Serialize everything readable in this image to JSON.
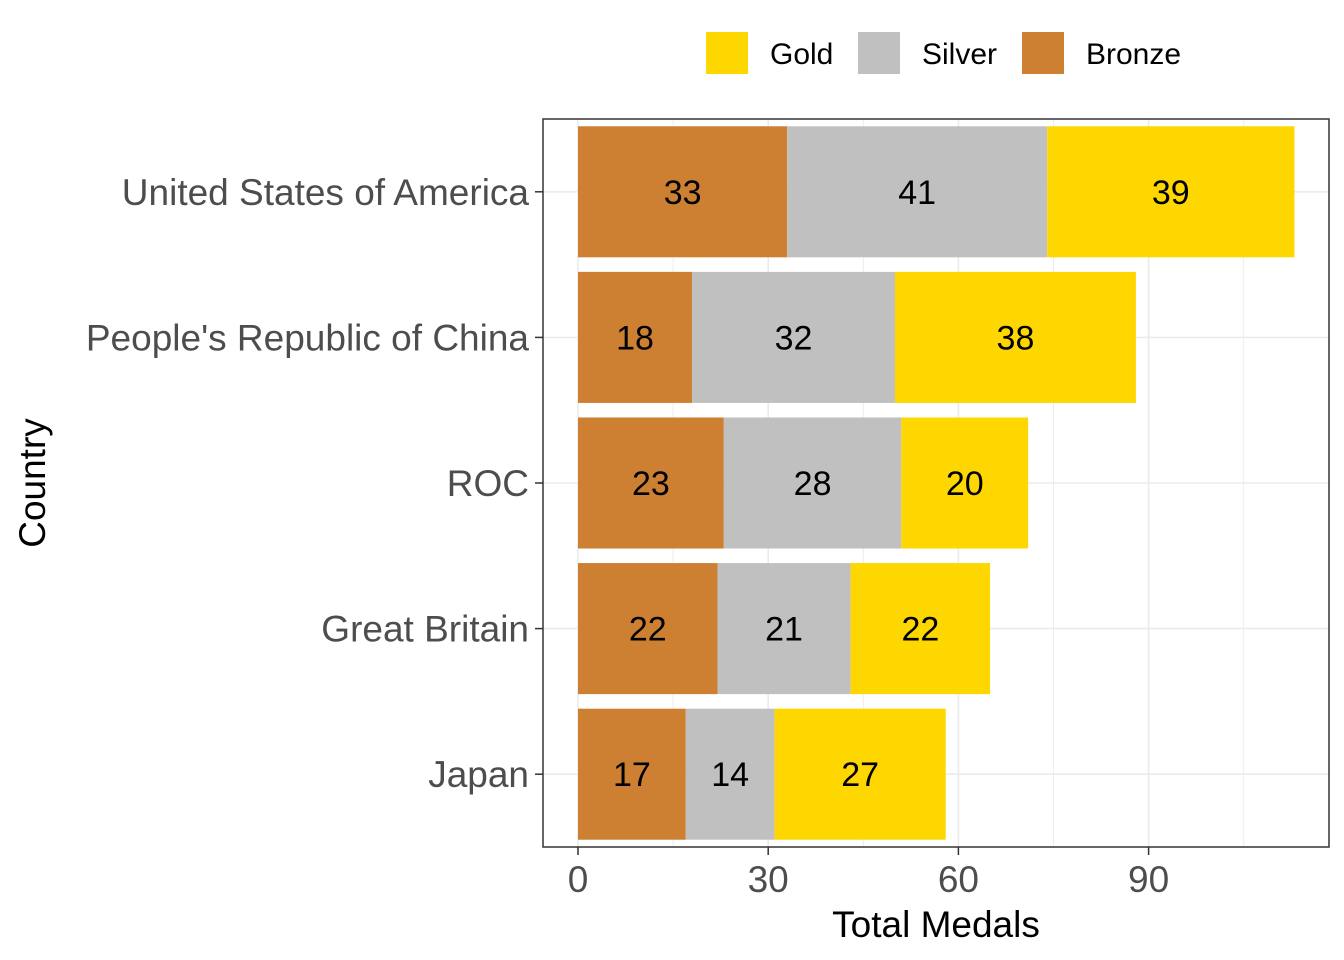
{
  "chart_data": {
    "type": "bar",
    "orientation": "horizontal",
    "stacked": true,
    "categories": [
      "United States of America",
      "People's Republic of China",
      "ROC",
      "Great Britain",
      "Japan"
    ],
    "series": [
      {
        "name": "Bronze",
        "values": [
          33,
          18,
          23,
          22,
          17
        ]
      },
      {
        "name": "Silver",
        "values": [
          41,
          32,
          28,
          21,
          14
        ]
      },
      {
        "name": "Gold",
        "values": [
          39,
          38,
          20,
          22,
          27
        ]
      }
    ],
    "legend_order": [
      "Gold",
      "Silver",
      "Bronze"
    ],
    "xlabel": "Total Medals",
    "ylabel": "Country",
    "xticks": [
      0,
      30,
      60,
      90
    ],
    "xlim": [
      -5.5,
      118.5
    ],
    "grid": true,
    "legend_position": "top-right"
  },
  "colors": {
    "Gold": "#FFD700",
    "Silver": "#C0C0C0",
    "Bronze": "#CD7F32",
    "grid": "#ebebeb",
    "panel_border": "#333333",
    "tick_text": "#4d4d4d"
  }
}
